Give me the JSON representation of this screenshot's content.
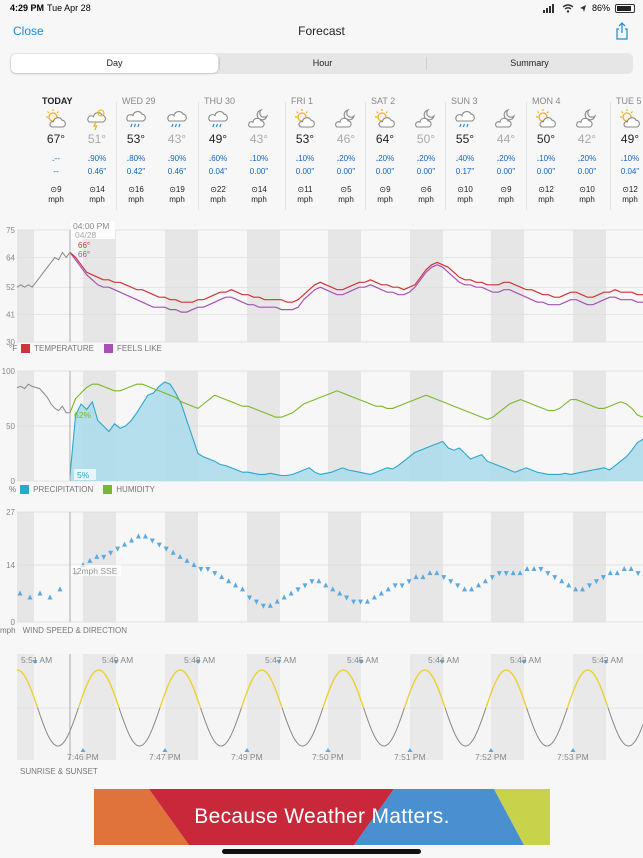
{
  "status_bar": {
    "time": "4:29 PM",
    "date": "Tue Apr 28",
    "battery": "86%"
  },
  "nav": {
    "close_label": "Close",
    "title": "Forecast"
  },
  "tabs": [
    {
      "label": "Day",
      "active": true
    },
    {
      "label": "Hour",
      "active": false
    },
    {
      "label": "Summary",
      "active": false
    }
  ],
  "days": [
    {
      "name": "TODAY",
      "slots": [
        {
          "icon": "sun-cloud-icon",
          "temp": "67°",
          "precip": "--",
          "inches": "--",
          "wind": "9",
          "unit": "mph",
          "low": false
        },
        {
          "icon": "thunderstorm-icon",
          "temp": "51°",
          "precip": "90%",
          "inches": "0.46\"",
          "wind": "14",
          "unit": "mph",
          "low": true
        }
      ]
    },
    {
      "name": "WED 29",
      "slots": [
        {
          "icon": "rain-icon",
          "temp": "53°",
          "precip": "80%",
          "inches": "0.42\"",
          "wind": "16",
          "unit": "mph",
          "low": false
        },
        {
          "icon": "rain-icon",
          "temp": "43°",
          "precip": "90%",
          "inches": "0.46\"",
          "wind": "19",
          "unit": "mph",
          "low": true
        }
      ]
    },
    {
      "name": "THU 30",
      "slots": [
        {
          "icon": "rain-icon",
          "temp": "49°",
          "precip": "60%",
          "inches": "0.04\"",
          "wind": "22",
          "unit": "mph",
          "low": false
        },
        {
          "icon": "moon-cloud-icon",
          "temp": "43°",
          "precip": "10%",
          "inches": "0.00\"",
          "wind": "14",
          "unit": "mph",
          "low": true
        }
      ]
    },
    {
      "name": "FRI 1",
      "slots": [
        {
          "icon": "sun-cloud-icon",
          "temp": "53°",
          "precip": "10%",
          "inches": "0.00\"",
          "wind": "11",
          "unit": "mph",
          "low": false
        },
        {
          "icon": "moon-cloud-icon",
          "temp": "46°",
          "precip": "20%",
          "inches": "0.00\"",
          "wind": "5",
          "unit": "mph",
          "low": true
        }
      ]
    },
    {
      "name": "SAT 2",
      "slots": [
        {
          "icon": "sun-cloud-icon",
          "temp": "64°",
          "precip": "20%",
          "inches": "0.00\"",
          "wind": "9",
          "unit": "mph",
          "low": false
        },
        {
          "icon": "moon-cloud-icon",
          "temp": "50°",
          "precip": "20%",
          "inches": "0.00\"",
          "wind": "6",
          "unit": "mph",
          "low": true
        }
      ]
    },
    {
      "name": "SUN 3",
      "slots": [
        {
          "icon": "rain-icon",
          "temp": "55°",
          "precip": "40%",
          "inches": "0.17\"",
          "wind": "10",
          "unit": "mph",
          "low": false
        },
        {
          "icon": "moon-cloud-icon",
          "temp": "44°",
          "precip": "20%",
          "inches": "0.00\"",
          "wind": "9",
          "unit": "mph",
          "low": true
        }
      ]
    },
    {
      "name": "MON 4",
      "slots": [
        {
          "icon": "sun-cloud-icon",
          "temp": "50°",
          "precip": "10%",
          "inches": "0.00\"",
          "wind": "12",
          "unit": "mph",
          "low": false
        },
        {
          "icon": "moon-cloud-icon",
          "temp": "42°",
          "precip": "20%",
          "inches": "0.00\"",
          "wind": "10",
          "unit": "mph",
          "low": true
        }
      ]
    },
    {
      "name": "TUE 5",
      "slots": [
        {
          "icon": "sun-cloud-icon",
          "temp": "49°",
          "precip": "10%",
          "inches": "0.04\"",
          "wind": "12",
          "unit": "mph",
          "low": false
        }
      ]
    }
  ],
  "cursor": {
    "time": "04:00 PM",
    "date": "04/28",
    "temperature": "66°",
    "feels_like": "66°",
    "humidity": "62%",
    "precipitation": "5%",
    "wind": "12mph SSE"
  },
  "legends": {
    "temperature": {
      "unit": "°F",
      "temperature": "TEMPERATURE",
      "feels_like": "FEELS LIKE"
    },
    "precip": {
      "unit": "%",
      "precipitation": "PRECIPITATION",
      "humidity": "HUMIDITY"
    },
    "wind": {
      "unit": "mph",
      "label": "WIND SPEED & DIRECTION"
    },
    "sun": {
      "label": "SUNRISE & SUNSET"
    }
  },
  "colors": {
    "temperature": "#d0343a",
    "feels_like": "#a652b4",
    "precipitation": "#2aa7cc",
    "humidity": "#7ab82b",
    "accent": "#1a8ad6"
  },
  "chart_data": [
    {
      "type": "line",
      "name": "temperature-chart",
      "yticks": [
        "75",
        "64",
        "52",
        "41",
        "30"
      ],
      "ylim": [
        30,
        75
      ],
      "series": [
        {
          "name": "TEMPERATURE",
          "key": "temp",
          "values": [
            66,
            64,
            61,
            58,
            57,
            56,
            55,
            55,
            54,
            54,
            53,
            52,
            51,
            51,
            50,
            49,
            48,
            48,
            47,
            47,
            46,
            46,
            46,
            47,
            47,
            48,
            49,
            50,
            50,
            51,
            50,
            49,
            49,
            48,
            48,
            47,
            47,
            47,
            47,
            46,
            46,
            47,
            49,
            51,
            53,
            54,
            53,
            52,
            51,
            51,
            52,
            53,
            54,
            54,
            55,
            54,
            53,
            53,
            52,
            52,
            51,
            52,
            53,
            56,
            59,
            61,
            62,
            61,
            60,
            58,
            56,
            55,
            55,
            54,
            54,
            53,
            53,
            53,
            54,
            54,
            53,
            52,
            51,
            51,
            50,
            49,
            49,
            48,
            48,
            49,
            50,
            50,
            49,
            48,
            48,
            49,
            50,
            50,
            51,
            50,
            50,
            50,
            49,
            49
          ]
        },
        {
          "name": "FEELS LIKE",
          "key": "feels",
          "values": [
            66,
            63,
            60,
            57,
            55,
            53,
            52,
            52,
            51,
            50,
            49,
            48,
            47,
            46,
            45,
            44,
            44,
            44,
            43,
            43,
            42,
            42,
            43,
            44,
            44,
            45,
            46,
            47,
            48,
            48,
            47,
            46,
            45,
            45,
            44,
            44,
            44,
            44,
            43,
            43,
            43,
            44,
            47,
            49,
            51,
            52,
            51,
            50,
            49,
            49,
            50,
            51,
            52,
            52,
            53,
            52,
            51,
            50,
            50,
            49,
            49,
            50,
            52,
            55,
            58,
            60,
            61,
            60,
            58,
            56,
            54,
            53,
            53,
            52,
            52,
            51,
            50,
            50,
            51,
            51,
            50,
            49,
            48,
            47,
            46,
            46,
            45,
            45,
            45,
            46,
            47,
            47,
            46,
            45,
            45,
            46,
            47,
            48,
            48,
            47,
            47,
            47,
            46,
            46
          ]
        }
      ]
    },
    {
      "type": "area",
      "name": "precip-humidity-chart",
      "yticks": [
        "100",
        "50",
        "0"
      ],
      "ylim": [
        0,
        100
      ],
      "series": [
        {
          "name": "PRECIPITATION",
          "key": "precip",
          "values": [
            5,
            60,
            70,
            65,
            72,
            55,
            50,
            45,
            52,
            48,
            50,
            55,
            62,
            70,
            78,
            80,
            86,
            90,
            88,
            80,
            70,
            55,
            40,
            25,
            22,
            20,
            18,
            15,
            14,
            12,
            10,
            8,
            8,
            7,
            6,
            6,
            7,
            6,
            5,
            5,
            6,
            8,
            10,
            12,
            8,
            6,
            7,
            8,
            10,
            12,
            10,
            9,
            8,
            7,
            6,
            8,
            10,
            12,
            11,
            14,
            18,
            22,
            26,
            28,
            30,
            32,
            34,
            36,
            30,
            28,
            30,
            25,
            20,
            22,
            24,
            18,
            16,
            14,
            12,
            10,
            8,
            10,
            12,
            10,
            8,
            7,
            6,
            6,
            6,
            7,
            6,
            7,
            8,
            9,
            10,
            11,
            12,
            10,
            14,
            18,
            22,
            28,
            35,
            38
          ]
        },
        {
          "name": "HUMIDITY",
          "key": "hum",
          "values": [
            62,
            75,
            80,
            85,
            88,
            88,
            86,
            84,
            82,
            82,
            84,
            86,
            88,
            88,
            86,
            84,
            82,
            80,
            78,
            76,
            72,
            70,
            68,
            66,
            70,
            74,
            78,
            76,
            74,
            72,
            70,
            68,
            68,
            66,
            64,
            62,
            60,
            58,
            58,
            60,
            62,
            66,
            70,
            72,
            74,
            76,
            78,
            80,
            82,
            80,
            78,
            76,
            74,
            72,
            70,
            68,
            68,
            66,
            66,
            68,
            70,
            72,
            74,
            76,
            78,
            76,
            74,
            72,
            70,
            68,
            66,
            64,
            62,
            60,
            58,
            56,
            58,
            62,
            66,
            70,
            72,
            74,
            72,
            70,
            68,
            66,
            64,
            64,
            66,
            70,
            74,
            74,
            72,
            70,
            68,
            66,
            66,
            68,
            70,
            72,
            70,
            66,
            60,
            58
          ]
        }
      ]
    },
    {
      "type": "scatter",
      "name": "wind-chart",
      "yticks": [
        "27",
        "14",
        "0"
      ],
      "ylim": [
        0,
        27
      ],
      "series": [
        {
          "name": "WIND SPEED & DIRECTION",
          "key": "wind",
          "values": [
            12,
            14,
            15,
            16,
            16,
            17,
            18,
            19,
            20,
            21,
            21,
            20,
            19,
            18,
            17,
            16,
            15,
            14,
            13,
            13,
            12,
            11,
            10,
            9,
            8,
            6,
            5,
            4,
            4,
            5,
            6,
            7,
            8,
            9,
            10,
            10,
            9,
            8,
            7,
            6,
            5,
            5,
            5,
            6,
            7,
            8,
            9,
            9,
            10,
            11,
            11,
            12,
            12,
            11,
            10,
            9,
            8,
            8,
            9,
            10,
            11,
            12,
            12,
            12,
            12,
            13,
            13,
            13,
            12,
            11,
            10,
            9,
            8,
            8,
            9,
            10,
            11,
            12,
            12,
            13,
            13,
            12,
            11
          ]
        }
      ]
    },
    {
      "type": "line",
      "name": "sun-chart",
      "series": [
        {
          "name": "SUNRISE & SUNSET",
          "key": "sun",
          "values": []
        }
      ],
      "sunrise_times": [
        "5:51 AM",
        "5:49 AM",
        "5:48 AM",
        "5:47 AM",
        "5:45 AM",
        "5:44 AM",
        "5:43 AM",
        "5:42 AM"
      ],
      "sunset_times": [
        "7:46 PM",
        "7:47 PM",
        "7:49 PM",
        "7:50 PM",
        "7:51 PM",
        "7:52 PM",
        "7:53 PM"
      ]
    }
  ],
  "banner": {
    "text": "Because Weather Matters."
  }
}
